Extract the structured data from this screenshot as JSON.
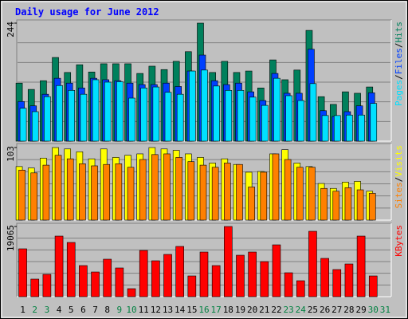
{
  "chart_data": {
    "type": "bar",
    "title": "Daily usage for June 2012",
    "categories": [
      "1",
      "2",
      "3",
      "4",
      "5",
      "6",
      "7",
      "8",
      "9",
      "10",
      "11",
      "12",
      "13",
      "14",
      "15",
      "16",
      "17",
      "18",
      "19",
      "20",
      "21",
      "22",
      "23",
      "24",
      "25",
      "26",
      "27",
      "28",
      "29",
      "30",
      "31"
    ],
    "category_colors": [
      "#000000",
      "#008040",
      "#008040",
      "#000000",
      "#000000",
      "#000000",
      "#000000",
      "#000000",
      "#008040",
      "#008040",
      "#000000",
      "#000000",
      "#000000",
      "#000000",
      "#000000",
      "#008040",
      "#008040",
      "#000000",
      "#000000",
      "#000000",
      "#000000",
      "#000000",
      "#008040",
      "#008040",
      "#000000",
      "#000000",
      "#000000",
      "#000000",
      "#000000",
      "#008040",
      "#008040"
    ],
    "legend_separator": "/",
    "panels": [
      {
        "ylim": [
          0,
          244
        ],
        "yticks": [
          244
        ],
        "grid": true,
        "series": [
          {
            "name": "Hits",
            "color": "#00805c",
            "values": [
              120,
              107,
              125,
              173,
              142,
              158,
              143,
              160,
              160,
              160,
              140,
              155,
              148,
              165,
              185,
              244,
              142,
              165,
              142,
              145,
              110,
              168,
              127,
              147,
              229,
              92,
              76,
              102,
              99,
              112,
              0
            ]
          },
          {
            "name": "Files",
            "color": "#0040ff",
            "values": [
              82,
              73,
              97,
              130,
              120,
              110,
              130,
              127,
              125,
              120,
              117,
              117,
              120,
              113,
              145,
              178,
              125,
              117,
              120,
              102,
              84,
              140,
              99,
              99,
              190,
              63,
              51,
              61,
              73,
              100,
              0
            ]
          },
          {
            "name": "Pages",
            "color": "#00e0ff",
            "values": [
              68,
              61,
              92,
              115,
              105,
              97,
              127,
              122,
              123,
              89,
              110,
              112,
              101,
              97,
              145,
              147,
              114,
              105,
              105,
              91,
              74,
              130,
              94,
              84,
              119,
              53,
              53,
              54,
              54,
              78,
              0
            ]
          }
        ]
      },
      {
        "ylim": [
          0,
          103
        ],
        "yticks": [
          103
        ],
        "grid": true,
        "series": [
          {
            "name": "Visits",
            "color": "#ffff00",
            "values": [
              76,
              74,
              88,
              103,
              101,
              97,
              87,
              101,
              89,
              92,
              94,
              103,
              101,
              99,
              94,
              89,
              81,
              87,
              79,
              68,
              69,
              94,
              100,
              81,
              76,
              52,
              45,
              54,
              55,
              41,
              0
            ]
          },
          {
            "name": "Sites",
            "color": "#ff8000",
            "values": [
              71,
              67,
              78,
              92,
              87,
              80,
              77,
              79,
              80,
              75,
              86,
              93,
              94,
              89,
              83,
              78,
              75,
              81,
              79,
              47,
              68,
              94,
              86,
              75,
              75,
              45,
              41,
              46,
              43,
              38,
              0
            ]
          }
        ]
      },
      {
        "ylim": [
          0,
          19065
        ],
        "yticks": [
          19065
        ],
        "grid": true,
        "series": [
          {
            "name": "KBytes",
            "color": "#ff0000",
            "values": [
              13000,
              4770,
              6060,
              16460,
              14730,
              8450,
              6710,
              10180,
              7800,
              2170,
              12560,
              9750,
              11480,
              13650,
              5630,
              12130,
              8450,
              19065,
              11260,
              12130,
              9530,
              14080,
              6500,
              4330,
              17760,
              10400,
              7370,
              8880,
              16460,
              5630,
              0
            ]
          }
        ]
      }
    ]
  }
}
